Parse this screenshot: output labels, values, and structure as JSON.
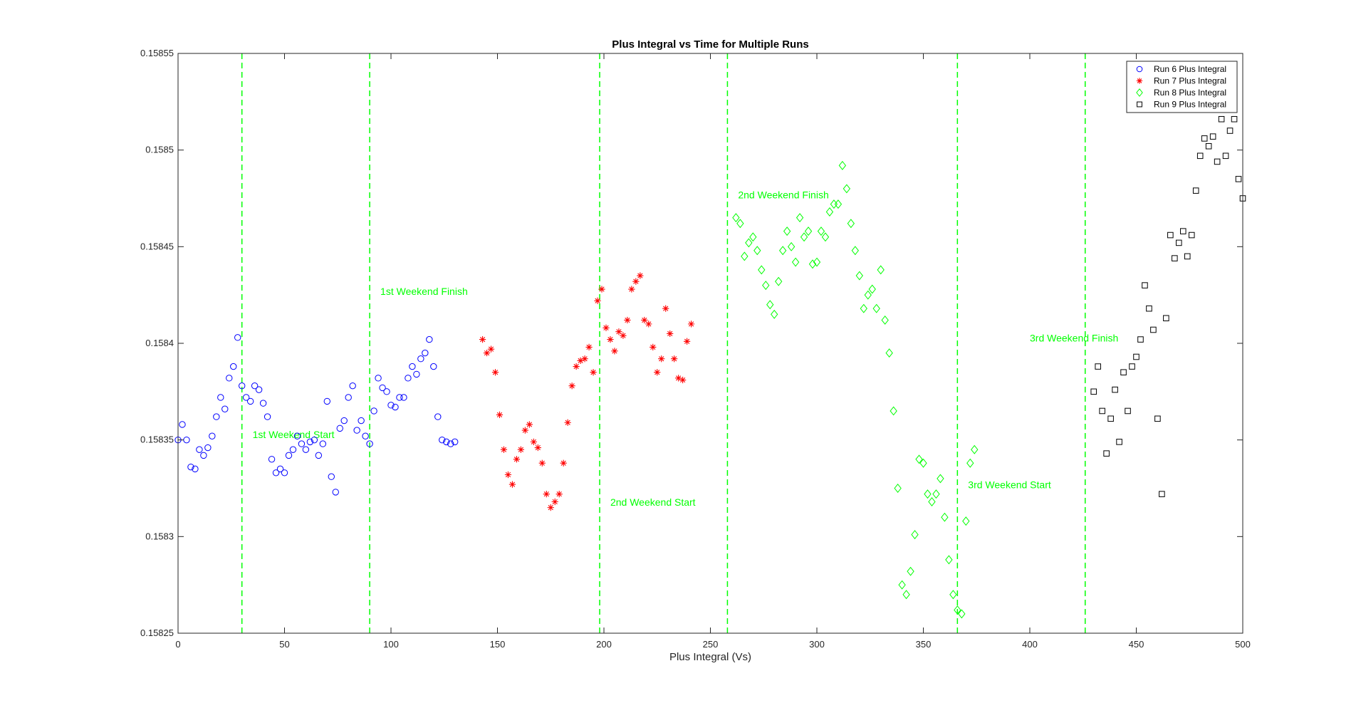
{
  "chart_data": {
    "type": "scatter",
    "title": "Plus Integral vs Time for Multiple Runs",
    "xlabel": "Plus Integral (Vs)",
    "ylabel": "",
    "xlim": [
      0,
      500
    ],
    "ylim": [
      0.15825,
      0.15855
    ],
    "x_ticks": [
      0,
      50,
      100,
      150,
      200,
      250,
      300,
      350,
      400,
      450,
      500
    ],
    "y_ticks": [
      0.15825,
      0.1583,
      0.15835,
      0.1584,
      0.15845,
      0.1585,
      0.15855
    ],
    "x_tick_labels": [
      "0",
      "50",
      "100",
      "150",
      "200",
      "250",
      "300",
      "350",
      "400",
      "450",
      "500"
    ],
    "y_tick_labels": [
      "0.15825",
      "0.1583",
      "0.15835",
      "0.1584",
      "0.15845",
      "0.1585",
      "0.15855"
    ],
    "grid": false,
    "legend_position": "top-right",
    "vertical_lines": [
      30,
      90,
      198,
      258,
      366,
      426
    ],
    "vertical_line_color": "#00ff00",
    "annotations": [
      {
        "text": "1st Weekend Start",
        "x": 35,
        "y": 0.158351,
        "color": "#00ff00"
      },
      {
        "text": "1st Weekend Finish",
        "x": 95,
        "y": 0.158425,
        "color": "#00ff00"
      },
      {
        "text": "2nd Weekend Start",
        "x": 203,
        "y": 0.158316,
        "color": "#00ff00"
      },
      {
        "text": "2nd Weekend Finish",
        "x": 263,
        "y": 0.158475,
        "color": "#00ff00"
      },
      {
        "text": "3rd Weekend Start",
        "x": 371,
        "y": 0.158325,
        "color": "#00ff00"
      },
      {
        "text": "3rd Weekend Finish",
        "x": 400,
        "y": 0.158401,
        "color": "#00ff00"
      }
    ],
    "series": [
      {
        "name": "Run 6 Plus Integral",
        "marker": "circle",
        "color": "#0000ff",
        "x": [
          0,
          2,
          4,
          6,
          8,
          10,
          12,
          14,
          16,
          18,
          20,
          22,
          24,
          26,
          28,
          30,
          32,
          34,
          36,
          38,
          40,
          42,
          44,
          46,
          48,
          50,
          52,
          54,
          56,
          58,
          60,
          62,
          64,
          66,
          68,
          70,
          72,
          74,
          76,
          78,
          80,
          82,
          84,
          86,
          88,
          90,
          92,
          94,
          96,
          98,
          100,
          102,
          104,
          106,
          108,
          110,
          112,
          114,
          116,
          118,
          120,
          122,
          124,
          126,
          128,
          130
        ],
        "y": [
          0.15835,
          0.158358,
          0.15835,
          0.158336,
          0.158335,
          0.158345,
          0.158342,
          0.158346,
          0.158352,
          0.158362,
          0.158372,
          0.158366,
          0.158382,
          0.158388,
          0.158403,
          0.158378,
          0.158372,
          0.15837,
          0.158378,
          0.158376,
          0.158369,
          0.158362,
          0.15834,
          0.158333,
          0.158335,
          0.158333,
          0.158342,
          0.158345,
          0.158352,
          0.158348,
          0.158345,
          0.158349,
          0.15835,
          0.158342,
          0.158348,
          0.15837,
          0.158331,
          0.158323,
          0.158356,
          0.15836,
          0.158372,
          0.158378,
          0.158355,
          0.15836,
          0.158352,
          0.158348,
          0.158365,
          0.158382,
          0.158377,
          0.158375,
          0.158368,
          0.158367,
          0.158372,
          0.158372,
          0.158382,
          0.158388,
          0.158384,
          0.158392,
          0.158395,
          0.158402,
          0.158388,
          0.158362,
          0.15835,
          0.158349,
          0.158348,
          0.158349
        ]
      },
      {
        "name": "Run 7 Plus Integral",
        "marker": "star",
        "color": "#ff0000",
        "x": [
          143,
          145,
          147,
          149,
          151,
          153,
          155,
          157,
          159,
          161,
          163,
          165,
          167,
          169,
          171,
          173,
          175,
          177,
          179,
          181,
          183,
          185,
          187,
          189,
          191,
          193,
          195,
          197,
          199,
          201,
          203,
          205,
          207,
          209,
          211,
          213,
          215,
          217,
          219,
          221,
          223,
          225,
          227,
          229,
          231,
          233,
          235,
          237,
          239,
          241
        ],
        "y": [
          0.158402,
          0.158395,
          0.158397,
          0.158385,
          0.158363,
          0.158345,
          0.158332,
          0.158327,
          0.15834,
          0.158345,
          0.158355,
          0.158358,
          0.158349,
          0.158346,
          0.158338,
          0.158322,
          0.158315,
          0.158318,
          0.158322,
          0.158338,
          0.158359,
          0.158378,
          0.158388,
          0.158391,
          0.158392,
          0.158398,
          0.158385,
          0.158422,
          0.158428,
          0.158408,
          0.158402,
          0.158396,
          0.158406,
          0.158404,
          0.158412,
          0.158428,
          0.158432,
          0.158435,
          0.158412,
          0.15841,
          0.158398,
          0.158385,
          0.158392,
          0.158418,
          0.158405,
          0.158392,
          0.158382,
          0.158381,
          0.158401,
          0.15841
        ]
      },
      {
        "name": "Run 8 Plus Integral",
        "marker": "diamond",
        "color": "#00ff00",
        "x": [
          262,
          264,
          266,
          268,
          270,
          272,
          274,
          276,
          278,
          280,
          282,
          284,
          286,
          288,
          290,
          292,
          294,
          296,
          298,
          300,
          302,
          304,
          306,
          308,
          310,
          312,
          314,
          316,
          318,
          320,
          322,
          324,
          326,
          328,
          330,
          332,
          334,
          336,
          338,
          340,
          342,
          344,
          346,
          348,
          350,
          352,
          354,
          356,
          358,
          360,
          362,
          364,
          366,
          368,
          370,
          372,
          374
        ],
        "y": [
          0.158465,
          0.158462,
          0.158445,
          0.158452,
          0.158455,
          0.158448,
          0.158438,
          0.15843,
          0.15842,
          0.158415,
          0.158432,
          0.158448,
          0.158458,
          0.15845,
          0.158442,
          0.158465,
          0.158455,
          0.158458,
          0.158441,
          0.158442,
          0.158458,
          0.158455,
          0.158468,
          0.158472,
          0.158472,
          0.158492,
          0.15848,
          0.158462,
          0.158448,
          0.158435,
          0.158418,
          0.158425,
          0.158428,
          0.158418,
          0.158438,
          0.158412,
          0.158395,
          0.158365,
          0.158325,
          0.158275,
          0.15827,
          0.158282,
          0.158301,
          0.15834,
          0.158338,
          0.158322,
          0.158318,
          0.158322,
          0.15833,
          0.15831,
          0.158288,
          0.15827,
          0.158262,
          0.15826,
          0.158308,
          0.158338,
          0.158345
        ]
      },
      {
        "name": "Run 9 Plus Integral",
        "marker": "square",
        "color": "#000000",
        "x": [
          430,
          432,
          434,
          436,
          438,
          440,
          442,
          444,
          446,
          448,
          450,
          452,
          454,
          456,
          458,
          460,
          462,
          464,
          466,
          468,
          470,
          472,
          474,
          476,
          478,
          480,
          482,
          484,
          486,
          488,
          490,
          492,
          494,
          496,
          498,
          500
        ],
        "y": [
          0.158375,
          0.158388,
          0.158365,
          0.158343,
          0.158361,
          0.158376,
          0.158349,
          0.158385,
          0.158365,
          0.158388,
          0.158393,
          0.158402,
          0.15843,
          0.158418,
          0.158407,
          0.158361,
          0.158322,
          0.158413,
          0.158456,
          0.158444,
          0.158452,
          0.158458,
          0.158445,
          0.158456,
          0.158479,
          0.158497,
          0.158506,
          0.158502,
          0.158507,
          0.158494,
          0.158516,
          0.158497,
          0.15851,
          0.158516,
          0.158485,
          0.158475
        ]
      }
    ]
  }
}
